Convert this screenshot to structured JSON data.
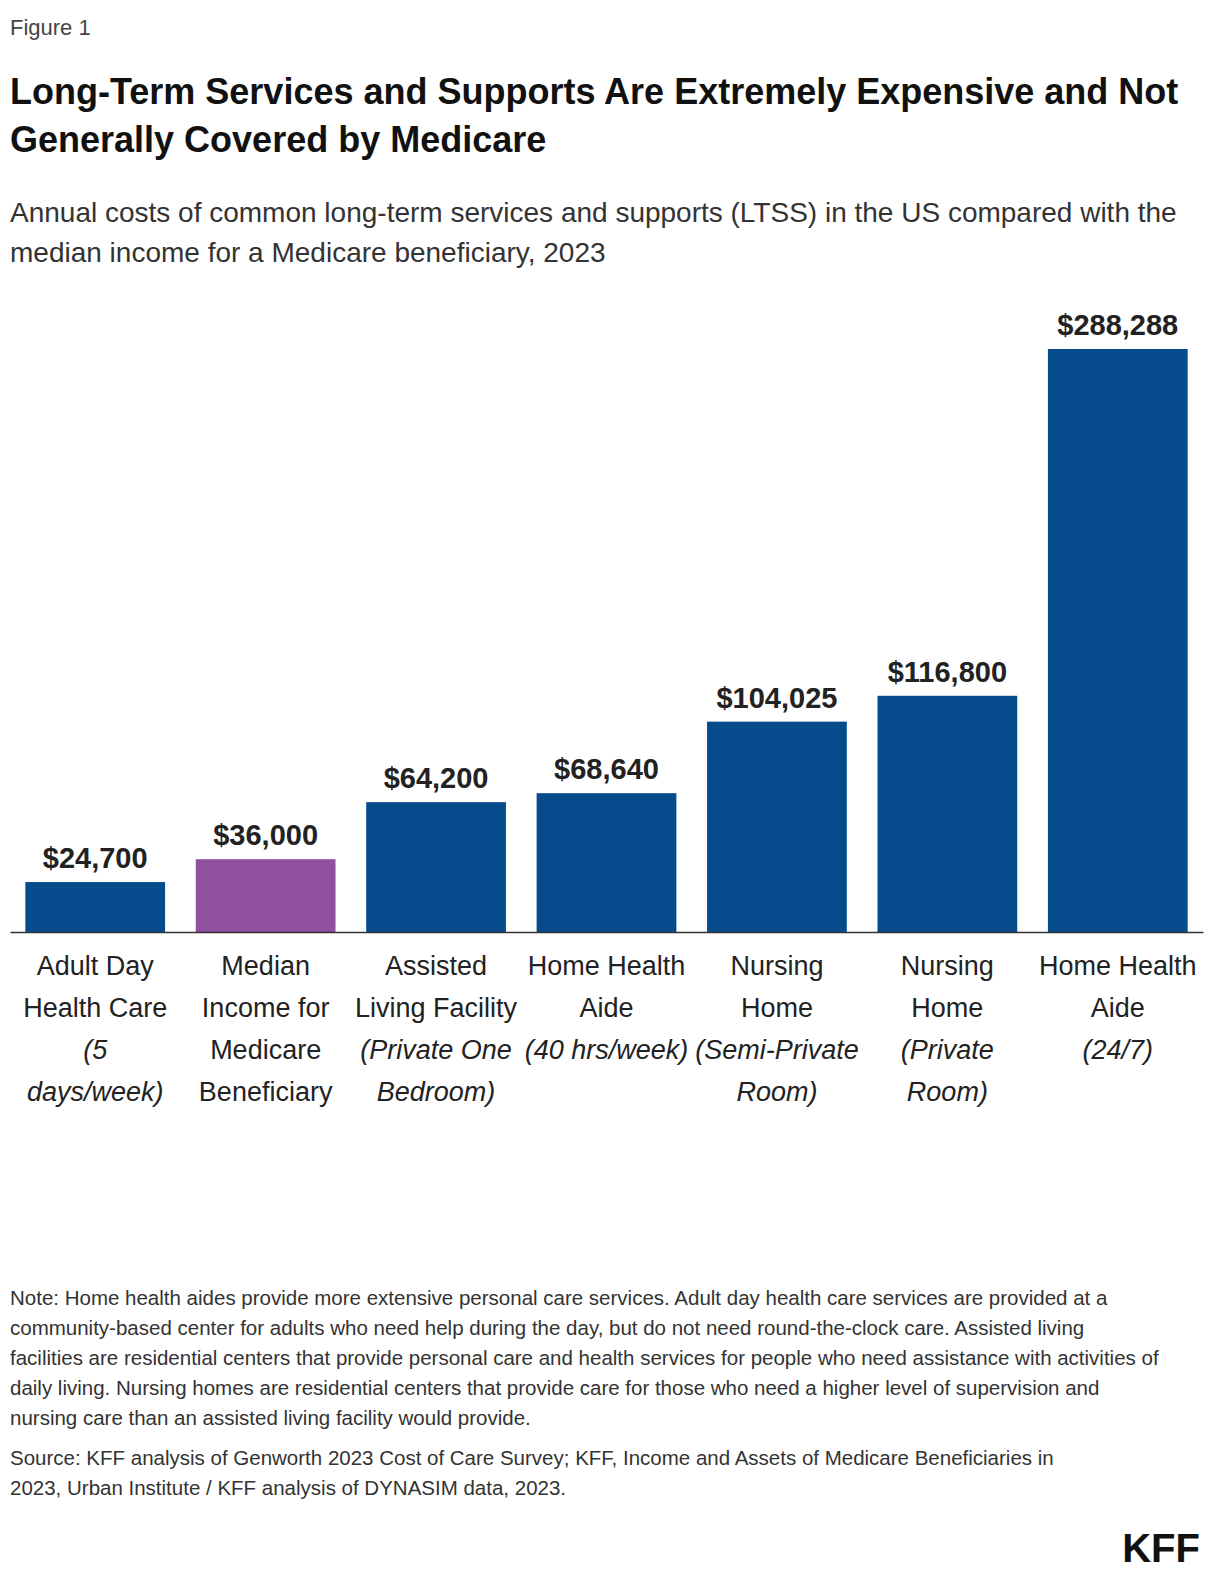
{
  "chart_data": {
    "type": "bar",
    "figure_label": "Figure 1",
    "title": "Long-Term Services and Supports Are Extremely Expensive and Not Generally Covered by Medicare",
    "subtitle": "Annual costs of common long-term services and supports (LTSS) in the US compared with the median income for a Medicare beneficiary, 2023",
    "categories": [
      "Adult Day Health Care (5 days/week)",
      "Median Income for Medicare Beneficiary",
      "Assisted Living Facility (Private One Bedroom)",
      "Home Health Aide (40 hrs/week)",
      "Nursing Home (Semi-Private Room)",
      "Nursing Home (Private Room)",
      "Home Health Aide (24/7)"
    ],
    "values": [
      24700,
      36000,
      64200,
      68640,
      104025,
      116800,
      288288
    ],
    "value_labels": [
      "$24,700",
      "$36,000",
      "$64,200",
      "$68,640",
      "$104,025",
      "$116,800",
      "$288,288"
    ],
    "colors": [
      "#064c8c",
      "#904f9f",
      "#064c8c",
      "#064c8c",
      "#064c8c",
      "#064c8c",
      "#064c8c"
    ],
    "data_labels": true,
    "tick_labels": "x",
    "grid": false,
    "note": "Note: Home health aides provide more extensive personal care services. Adult day health care services are provided at a community-based center for adults who need help during the day, but do not need round-the-clock care. Assisted living facilities are residential centers that provide personal care and health services for people who need assistance with activities of daily living. Nursing homes are residential centers that provide care for those who need a higher level of supervision and nursing care than an assisted living facility would provide.",
    "source": "Source: KFF analysis of Genworth 2023 Cost of Care Survey; KFF, Income and Assets of Medicare Beneficiaries in 2023, Urban Institute / KFF analysis of DYNASIM data, 2023.",
    "logo": "KFF"
  }
}
